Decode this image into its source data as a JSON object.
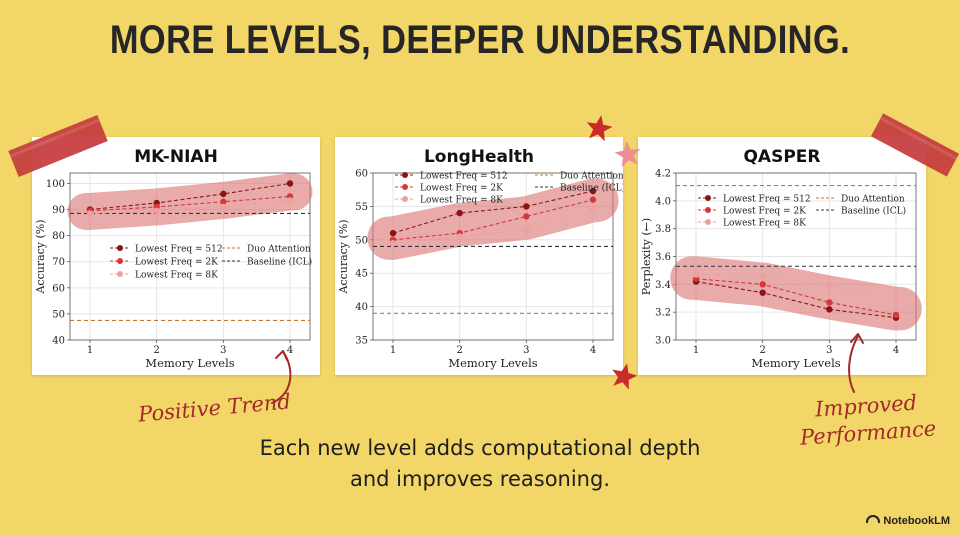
{
  "slide": {
    "title": "MORE LEVELS, DEEPER UNDERSTANDING.",
    "caption_line1": "Each new level adds computational depth",
    "caption_line2": "and improves reasoning.",
    "annotation_left": "Positive Trend",
    "annotation_right_line1": "Improved",
    "annotation_right_line2": "Performance",
    "brand": "NotebookLM"
  },
  "colors": {
    "background": "#f2d667",
    "tape": "#c63d3f",
    "highlight": "#d9736f",
    "series512": "#8b1515",
    "series2k": "#d4383c",
    "series8k": "#eea0a0",
    "duo": "#c2772a",
    "baseline": "#333344",
    "star": "#c92a2a",
    "star_pink": "#ee8f8f"
  },
  "chart_data": [
    {
      "type": "line",
      "title": "MK-NIAH",
      "xlabel": "Memory Levels",
      "ylabel": "Accuracy (%)",
      "x": [
        1,
        2,
        3,
        4
      ],
      "xticks": [
        "1",
        "2",
        "3",
        "4"
      ],
      "ylim": [
        40,
        104
      ],
      "yticks": [
        40,
        50,
        60,
        70,
        80,
        90,
        100
      ],
      "series": [
        {
          "name": "Lowest Freq = 512",
          "values": [
            90,
            92.5,
            96,
            100
          ]
        },
        {
          "name": "Lowest Freq = 2K",
          "values": [
            89.5,
            91,
            93,
            95
          ]
        },
        {
          "name": "Lowest Freq = 8K",
          "values": [
            88.5,
            89.5,
            91,
            93.5
          ]
        }
      ],
      "reference_lines": [
        {
          "name": "Duo Attention",
          "value": 47.5
        },
        {
          "name": "Baseline (ICL)",
          "value": 88.5
        }
      ],
      "grid": true,
      "legend": "center-right"
    },
    {
      "type": "line",
      "title": "LongHealth",
      "xlabel": "Memory Levels",
      "ylabel": "Accuracy (%)",
      "x": [
        1,
        2,
        3,
        4
      ],
      "xticks": [
        "1",
        "2",
        "3",
        "4"
      ],
      "ylim": [
        35,
        60
      ],
      "yticks": [
        35,
        40,
        45,
        50,
        55,
        60
      ],
      "series": [
        {
          "name": "Lowest Freq = 512",
          "values": [
            51,
            54,
            55,
            57.3
          ]
        },
        {
          "name": "Lowest Freq = 2K",
          "values": [
            50,
            51,
            53.5,
            56
          ]
        },
        {
          "name": "Lowest Freq = 8K",
          "values": [
            49.5,
            50.5,
            51.5,
            54.5
          ]
        }
      ],
      "reference_lines": [
        {
          "name": "Duo Attention",
          "value": 39
        },
        {
          "name": "Baseline (ICL)",
          "value": 49
        }
      ],
      "grid": true,
      "legend": "top"
    },
    {
      "type": "line",
      "title": "QASPER",
      "xlabel": "Memory Levels",
      "ylabel": "Perplexity (←)",
      "x": [
        1,
        2,
        3,
        4
      ],
      "xticks": [
        "1",
        "2",
        "3",
        "4"
      ],
      "ylim": [
        3.0,
        4.2
      ],
      "yticks": [
        3.0,
        3.2,
        3.4,
        3.6,
        3.8,
        4.0,
        4.2
      ],
      "series": [
        {
          "name": "Lowest Freq = 512",
          "values": [
            3.42,
            3.34,
            3.22,
            3.16
          ]
        },
        {
          "name": "Lowest Freq = 2K",
          "values": [
            3.44,
            3.4,
            3.27,
            3.18
          ]
        },
        {
          "name": "Lowest Freq = 8K",
          "values": [
            3.47,
            3.46,
            3.39,
            3.29
          ]
        }
      ],
      "reference_lines": [
        {
          "name": "Duo Attention",
          "value": 4.11
        },
        {
          "name": "Baseline (ICL)",
          "value": 3.53
        }
      ],
      "grid": true,
      "legend": "top"
    }
  ]
}
